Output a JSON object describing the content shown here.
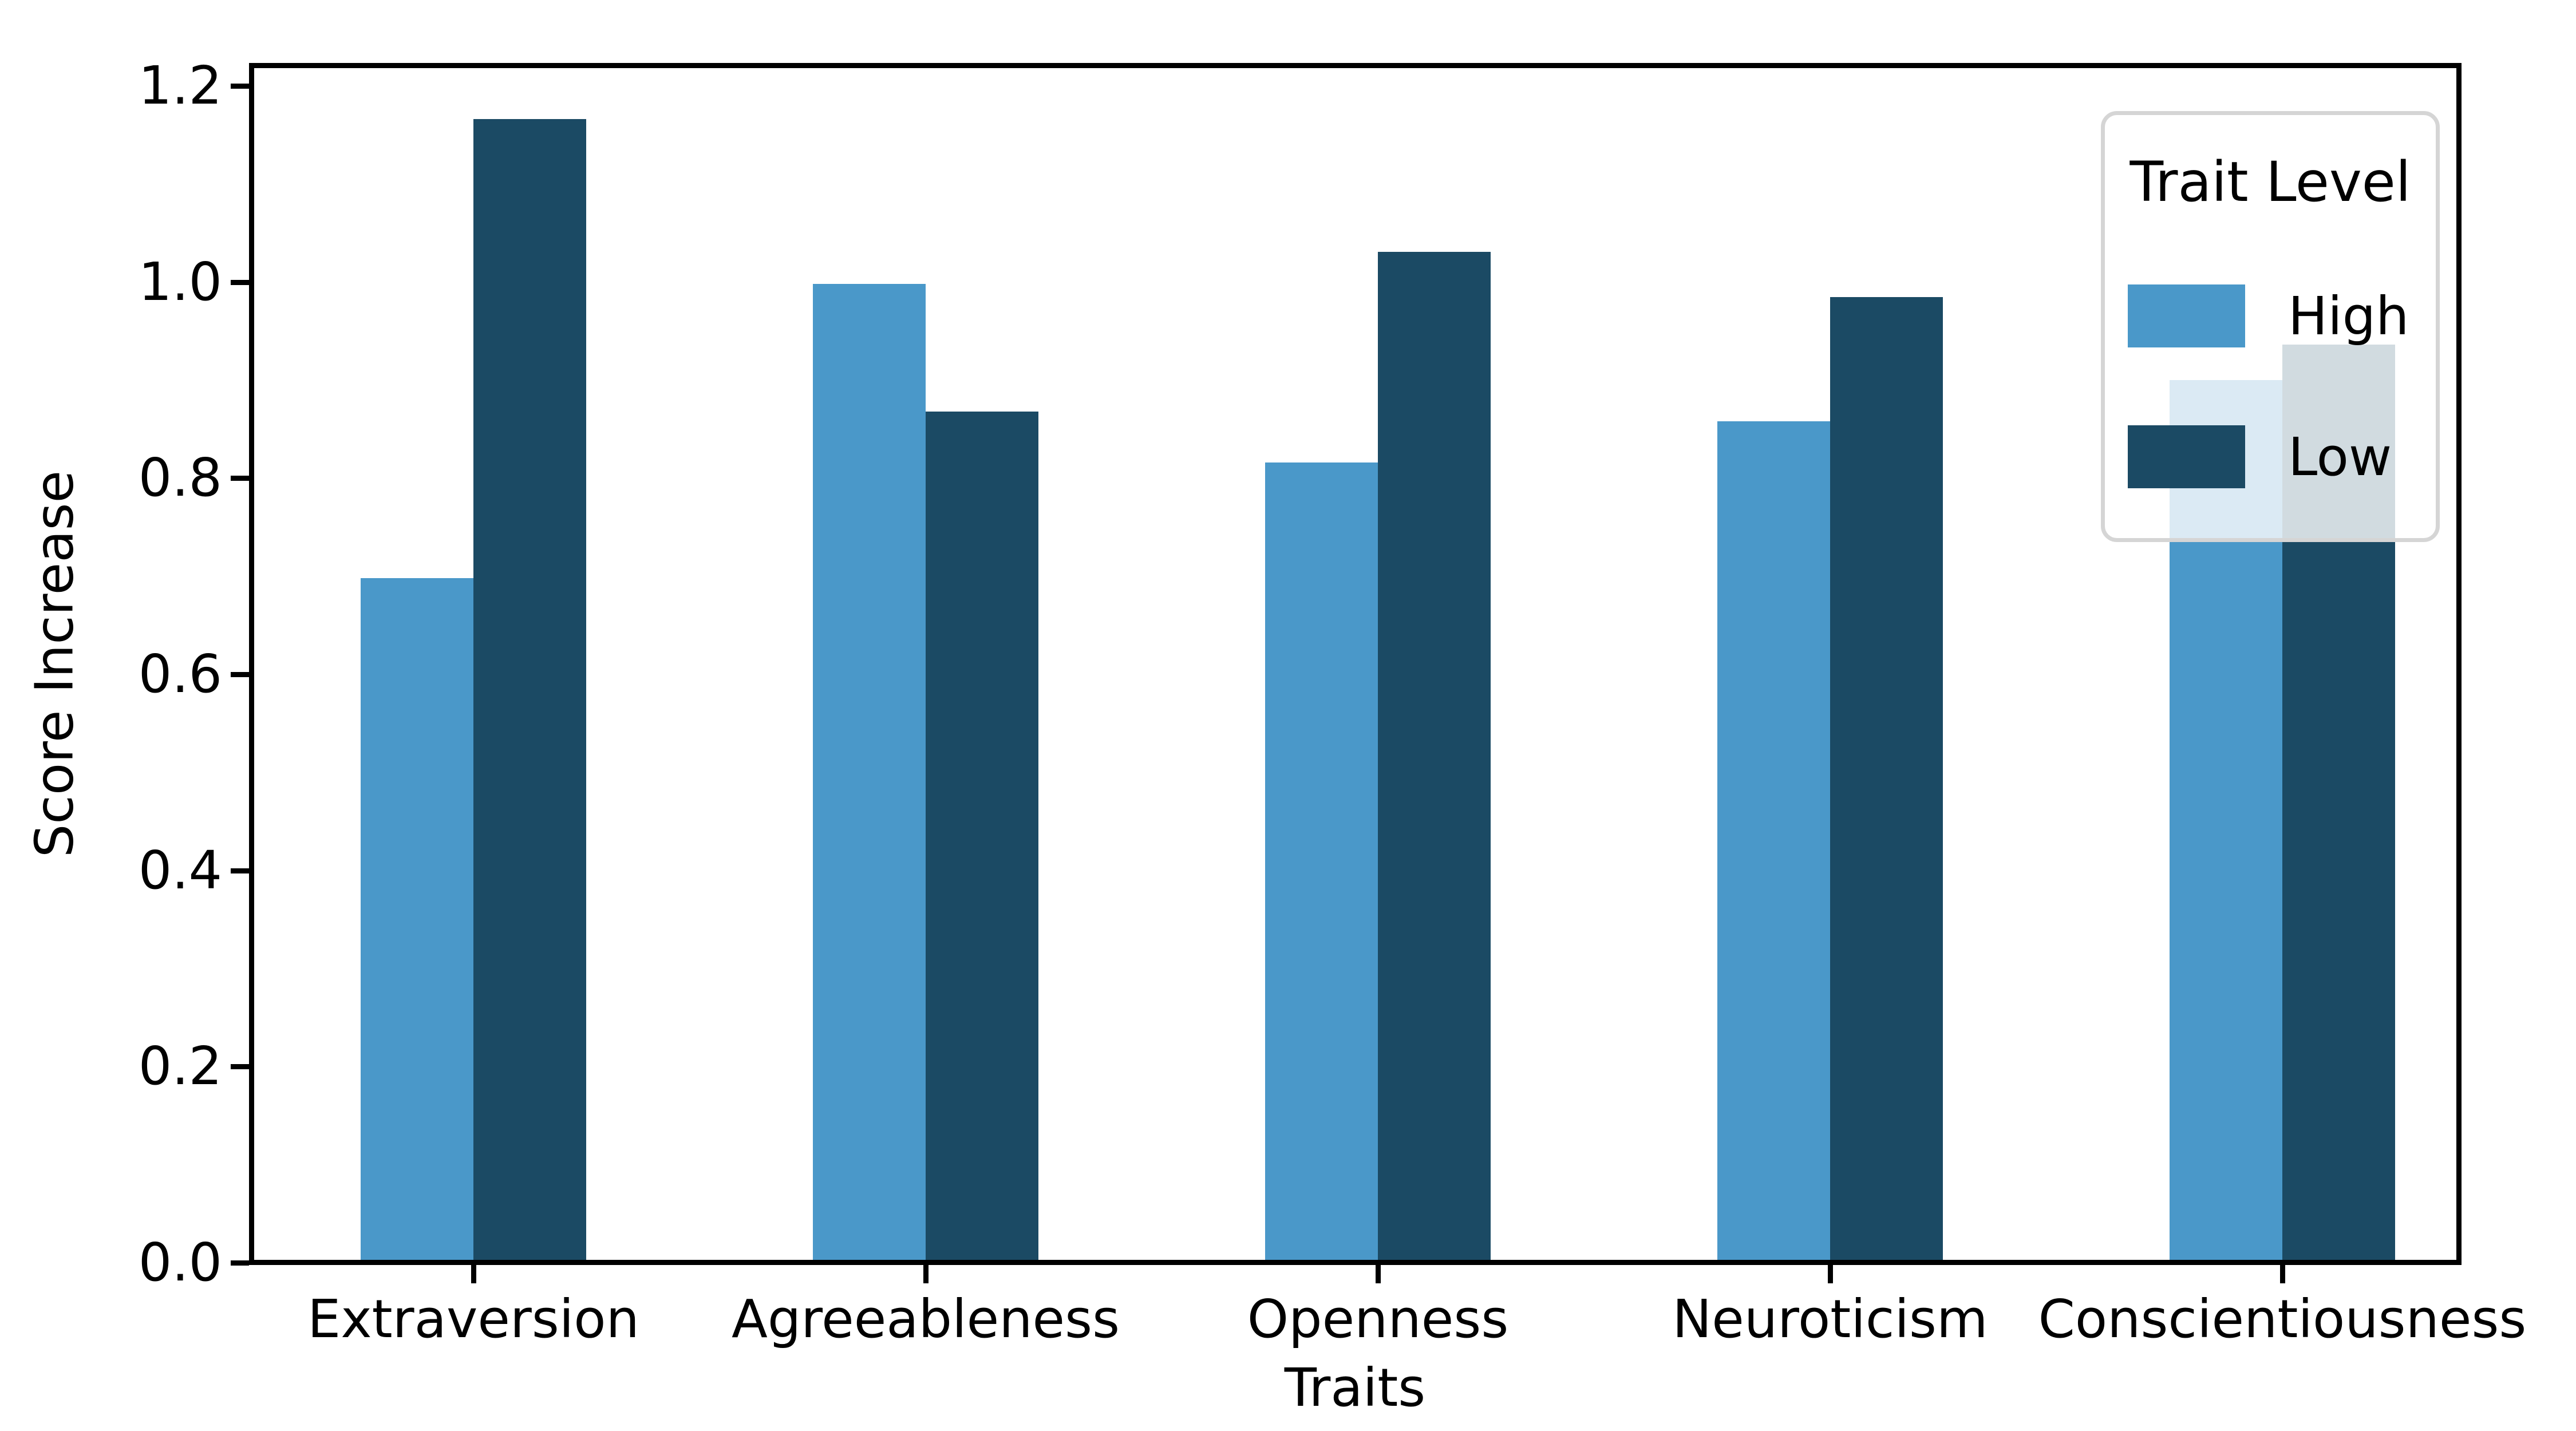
{
  "chart_data": {
    "type": "bar",
    "title": "",
    "xlabel": "Traits",
    "ylabel": "Score Increase",
    "categories": [
      "Extraversion",
      "Agreeableness",
      "Openness",
      "Neuroticism",
      "Conscientiousness"
    ],
    "series": [
      {
        "name": "High",
        "color": "#4A98C9",
        "values": [
          0.695,
          0.995,
          0.813,
          0.855,
          0.897
        ]
      },
      {
        "name": "Low",
        "color": "#1B4A64",
        "values": [
          1.163,
          0.865,
          1.028,
          0.982,
          0.933
        ]
      }
    ],
    "legend_title": "Trait Level",
    "legend_position": "upper right",
    "yticks": [
      0.0,
      0.2,
      0.4,
      0.6,
      0.8,
      1.0,
      1.2
    ],
    "ytick_format": "one_decimal",
    "ylim": [
      0,
      1.223
    ],
    "grid": false
  },
  "colors": {
    "high": "#4A98C9",
    "low": "#1B4A64",
    "axis": "#000000",
    "legend_border": "#D5D5D5",
    "background": "#FFFFFF"
  }
}
